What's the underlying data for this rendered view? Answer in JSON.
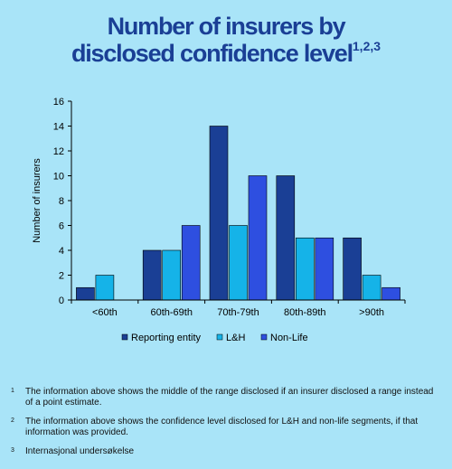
{
  "title": {
    "line1": "Number of insurers by",
    "line2": "disclosed confidence level",
    "sup": "1,2,3"
  },
  "chart_data": {
    "type": "bar",
    "categories": [
      "<60th",
      "60th-69th",
      "70th-79th",
      "80th-89th",
      ">90th"
    ],
    "series": [
      {
        "name": "Reporting entity",
        "values": [
          1,
          4,
          14,
          10,
          5
        ],
        "color": "#1a3f95"
      },
      {
        "name": "L&H",
        "values": [
          2,
          4,
          6,
          5,
          2
        ],
        "color": "#15b3e8"
      },
      {
        "name": "Non-Life",
        "values": [
          0,
          6,
          10,
          5,
          1
        ],
        "color": "#2e4fe0"
      }
    ],
    "ylabel": "Number of insurers",
    "xlabel": "",
    "ylim": [
      0,
      16
    ],
    "yticks": [
      0,
      2,
      4,
      6,
      8,
      10,
      12,
      14,
      16
    ],
    "grid": false,
    "legend": "bottom"
  },
  "footnotes": [
    {
      "num": "1",
      "text": "The information above shows the middle of the range disclosed if an insurer disclosed a range instead of a point estimate."
    },
    {
      "num": "2",
      "text": "The information above shows the confidence level disclosed for L&H and non-life segments, if that information was provided."
    },
    {
      "num": "3",
      "text": "Internasjonal undersøkelse"
    }
  ]
}
